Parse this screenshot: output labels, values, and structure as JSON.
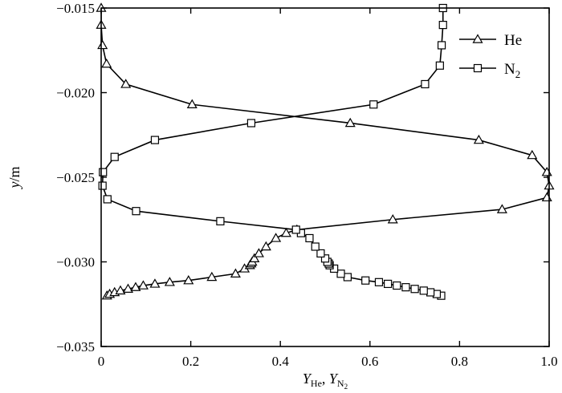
{
  "chart_data": {
    "type": "line",
    "xlabel": {
      "symbol": "Y",
      "sub1": "He",
      "sep": ", ",
      "sub2_main": "N",
      "sub2_sub": "2"
    },
    "ylabel": {
      "var": "y",
      "unit": "/m"
    },
    "xlim": [
      0,
      1.0
    ],
    "ylim": [
      -0.035,
      -0.015
    ],
    "xticks": [
      0,
      0.2,
      0.4,
      0.6,
      0.8,
      1.0
    ],
    "xtick_labels": [
      "0",
      "0.2",
      "0.4",
      "0.6",
      "0.8",
      "1.0"
    ],
    "yticks": [
      -0.035,
      -0.03,
      -0.025,
      -0.02,
      -0.015
    ],
    "ytick_labels": [
      "−0.035",
      "−0.030",
      "−0.025",
      "−0.020",
      "−0.015"
    ],
    "grid": false,
    "legend_position": "top-right",
    "series": [
      {
        "name": "He",
        "label_parts": [
          "He",
          ""
        ],
        "marker": "triangle",
        "color": "#000000",
        "x": [
          0.013,
          0.019,
          0.03,
          0.043,
          0.06,
          0.077,
          0.094,
          0.12,
          0.153,
          0.195,
          0.247,
          0.3,
          0.32,
          0.332,
          0.335,
          0.337,
          0.342,
          0.352,
          0.368,
          0.39,
          0.413,
          0.437,
          0.651,
          0.895,
          0.995,
          1.0,
          0.995,
          0.962,
          0.843,
          0.556,
          0.203,
          0.055,
          0.012,
          0.003,
          0.0,
          0.0
        ],
        "y": [
          -0.032,
          -0.0319,
          -0.0318,
          -0.0317,
          -0.0316,
          -0.0315,
          -0.0314,
          -0.0313,
          -0.0312,
          -0.0311,
          -0.0309,
          -0.0307,
          -0.0304,
          -0.0302,
          -0.0301,
          -0.03,
          -0.0298,
          -0.0295,
          -0.0291,
          -0.0286,
          -0.0283,
          -0.0281,
          -0.0275,
          -0.0269,
          -0.0262,
          -0.0255,
          -0.0247,
          -0.0237,
          -0.0228,
          -0.0218,
          -0.0207,
          -0.0195,
          -0.0183,
          -0.0172,
          -0.016,
          -0.015
        ]
      },
      {
        "name": "N2",
        "label_parts": [
          "N",
          "2"
        ],
        "marker": "square",
        "color": "#000000",
        "x": [
          0.759,
          0.749,
          0.735,
          0.72,
          0.7,
          0.68,
          0.66,
          0.64,
          0.62,
          0.59,
          0.55,
          0.535,
          0.52,
          0.51,
          0.508,
          0.505,
          0.5,
          0.49,
          0.478,
          0.465,
          0.446,
          0.435,
          0.266,
          0.078,
          0.014,
          0.003,
          0.004,
          0.03,
          0.12,
          0.335,
          0.608,
          0.723,
          0.756,
          0.76,
          0.763,
          0.763
        ],
        "y": [
          -0.032,
          -0.0319,
          -0.0318,
          -0.0317,
          -0.0316,
          -0.0315,
          -0.0314,
          -0.0313,
          -0.0312,
          -0.0311,
          -0.0309,
          -0.0307,
          -0.0304,
          -0.0302,
          -0.0301,
          -0.03,
          -0.0298,
          -0.0295,
          -0.0291,
          -0.0286,
          -0.0283,
          -0.0281,
          -0.0276,
          -0.027,
          -0.0263,
          -0.0255,
          -0.0247,
          -0.0238,
          -0.0228,
          -0.0218,
          -0.0207,
          -0.0195,
          -0.0184,
          -0.0172,
          -0.016,
          -0.015
        ]
      }
    ]
  }
}
